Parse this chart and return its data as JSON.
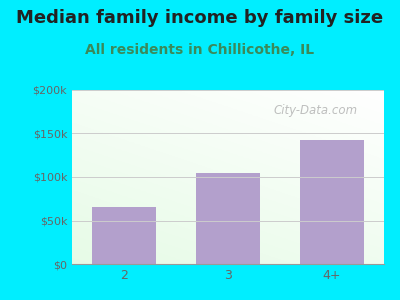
{
  "title": "Median family income by family size",
  "subtitle": "All residents in Chillicothe, IL",
  "categories": [
    "2",
    "3",
    "4+"
  ],
  "values": [
    65000,
    105000,
    143000
  ],
  "bar_color": "#b3a0cc",
  "figure_bg": "#00eeff",
  "title_color": "#222222",
  "subtitle_color": "#3a8a5a",
  "tick_label_color": "#666666",
  "ylim": [
    0,
    200000
  ],
  "yticks": [
    0,
    50000,
    100000,
    150000,
    200000
  ],
  "ytick_labels": [
    "$0",
    "$50k",
    "$100k",
    "$150k",
    "$200k"
  ],
  "title_fontsize": 13,
  "subtitle_fontsize": 10,
  "watermark": "City-Data.com",
  "grid_color": "#cccccc"
}
